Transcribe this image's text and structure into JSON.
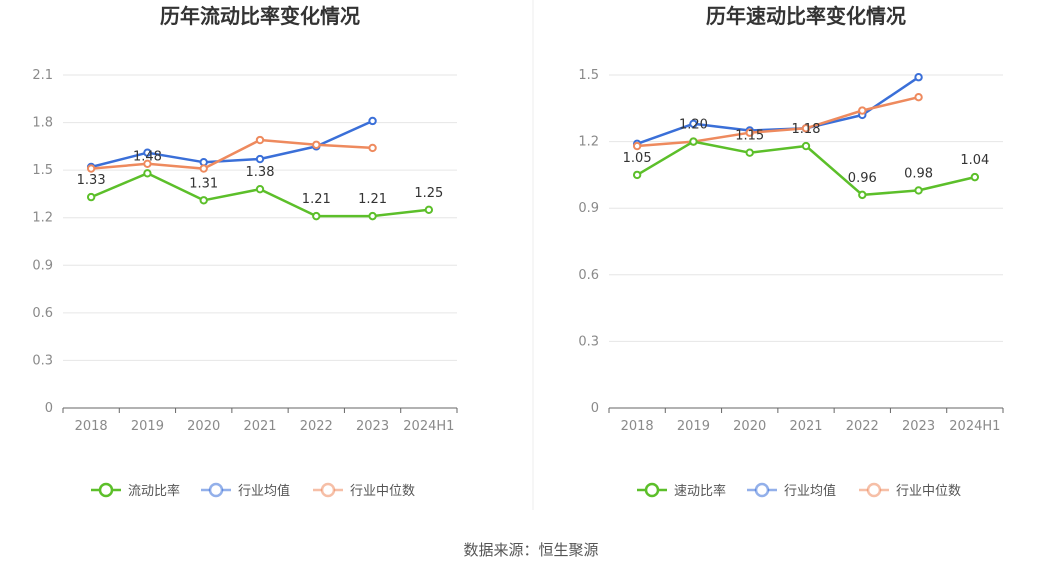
{
  "chart_data": [
    {
      "type": "line",
      "title": "历年流动比率变化情况",
      "categories": [
        "2018",
        "2019",
        "2020",
        "2021",
        "2022",
        "2023",
        "2024H1"
      ],
      "y_ticks": [
        "0",
        "0.3",
        "0.6",
        "0.9",
        "1.2",
        "1.5",
        "1.8",
        "2.1"
      ],
      "ylim": [
        0,
        2.1
      ],
      "grid": true,
      "legend_position": "bottom",
      "series": [
        {
          "name": "流动比率",
          "color": "#5cbf2a",
          "values": [
            1.33,
            1.48,
            1.31,
            1.38,
            1.21,
            1.21,
            1.25
          ],
          "labels": [
            "1.33",
            "1.48",
            "1.31",
            "1.38",
            "1.21",
            "1.21",
            "1.25"
          ]
        },
        {
          "name": "行业均值",
          "color": "#3a6fd8",
          "values": [
            1.52,
            1.61,
            1.55,
            1.57,
            1.65,
            1.81,
            null
          ]
        },
        {
          "name": "行业中位数",
          "color": "#ee8a5e",
          "values": [
            1.51,
            1.54,
            1.51,
            1.69,
            1.66,
            1.64,
            null
          ]
        }
      ]
    },
    {
      "type": "line",
      "title": "历年速动比率变化情况",
      "categories": [
        "2018",
        "2019",
        "2020",
        "2021",
        "2022",
        "2023",
        "2024H1"
      ],
      "y_ticks": [
        "0",
        "0.3",
        "0.6",
        "0.9",
        "1.2",
        "1.5"
      ],
      "ylim": [
        0,
        1.5
      ],
      "grid": true,
      "legend_position": "bottom",
      "series": [
        {
          "name": "速动比率",
          "color": "#5cbf2a",
          "values": [
            1.05,
            1.2,
            1.15,
            1.18,
            0.96,
            0.98,
            1.04
          ],
          "labels": [
            "1.05",
            "1.20",
            "1.15",
            "1.18",
            "0.96",
            "0.98",
            "1.04"
          ]
        },
        {
          "name": "行业均值",
          "color": "#3a6fd8",
          "values": [
            1.19,
            1.28,
            1.25,
            1.26,
            1.32,
            1.49,
            null
          ]
        },
        {
          "name": "行业中位数",
          "color": "#ee8a5e",
          "values": [
            1.18,
            1.2,
            1.24,
            1.26,
            1.34,
            1.4,
            null
          ]
        }
      ]
    }
  ],
  "source_text": "数据来源：恒生聚源"
}
